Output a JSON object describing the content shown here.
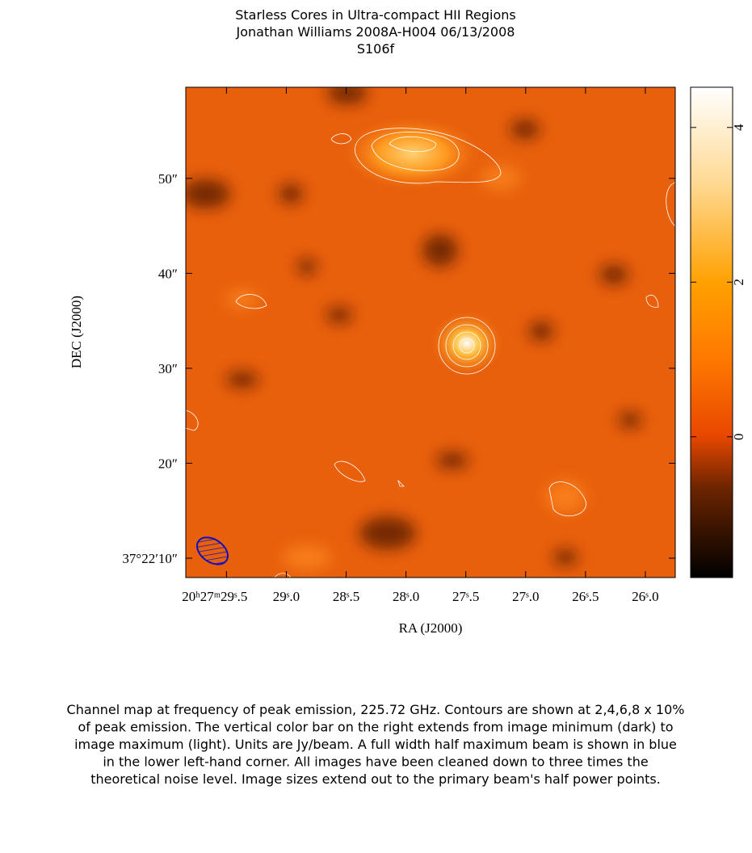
{
  "chart_data": {
    "type": "image",
    "title": [
      "Starless Cores in Ultra-compact HII Regions",
      "Jonathan Williams   2008A-H004   06/13/2008",
      "S106f"
    ],
    "xlabel": "RA (J2000)",
    "ylabel": "DEC (J2000)",
    "xlim": [
      29.84,
      25.75
    ],
    "xticks": [
      {
        "value": 29.5,
        "label": "20ʰ27ᵐ29ˢ.5"
      },
      {
        "value": 29.0,
        "label": "29ˢ.0"
      },
      {
        "value": 28.5,
        "label": "28ˢ.5"
      },
      {
        "value": 28.0,
        "label": "28ˢ.0"
      },
      {
        "value": 27.5,
        "label": "27ˢ.5"
      },
      {
        "value": 27.0,
        "label": "27ˢ.0"
      },
      {
        "value": 26.5,
        "label": "26ˢ.5"
      },
      {
        "value": 26.0,
        "label": "26ˢ.0"
      }
    ],
    "ylim": [
      7.96,
      59.6
    ],
    "yticks": [
      {
        "value": 50,
        "label": "50″"
      },
      {
        "value": 40,
        "label": "40″"
      },
      {
        "value": 30,
        "label": "30″"
      },
      {
        "value": 20,
        "label": "20″"
      },
      {
        "value": 10,
        "label": "37°22′10″"
      }
    ],
    "colorbar": {
      "lim": [
        -1.82,
        4.52
      ],
      "ticks": [
        0,
        2,
        4
      ]
    },
    "caption": [
      "Channel map at frequency of peak emission, 225.72 GHz.  Contours are shown at 2,4,6,8 x 10%",
      "of peak emission.  The vertical color bar on the right extends from image minimum (dark) to",
      "image maximum (light).  Units are Jy/beam.  A full width half maximum beam is shown in blue",
      "in the lower left-hand corner.  All images have been cleaned down to three times the",
      "theoretical noise level.  Image sizes extend out to the primary beam's half power points."
    ]
  }
}
